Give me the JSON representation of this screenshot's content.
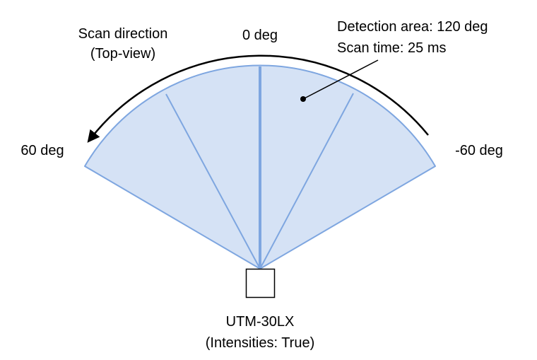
{
  "scan_direction": {
    "line1": "Scan direction",
    "line2": "(Top-view)"
  },
  "angles": {
    "center": "0 deg",
    "left": "60 deg",
    "right": "-60 deg"
  },
  "callout": {
    "line1": "Detection area: 120 deg",
    "line2": "Scan time: 25 ms"
  },
  "sensor": {
    "name": "UTM-30LX",
    "mode": "(Intensities: True)"
  },
  "colors": {
    "sector_fill": "#d5e2f5",
    "sector_stroke": "#7ea6e0",
    "ink": "#000000",
    "background": "#ffffff"
  },
  "detection_angle_deg": 120,
  "scan_time_ms": 25
}
